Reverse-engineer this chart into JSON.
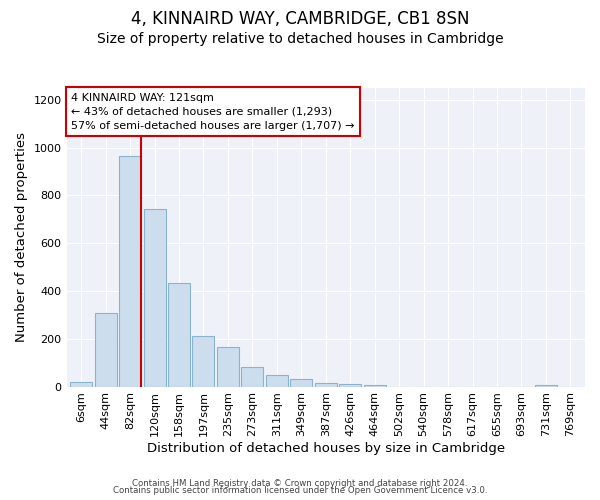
{
  "title": "4, KINNAIRD WAY, CAMBRIDGE, CB1 8SN",
  "subtitle": "Size of property relative to detached houses in Cambridge",
  "xlabel": "Distribution of detached houses by size in Cambridge",
  "ylabel": "Number of detached properties",
  "bar_labels": [
    "6sqm",
    "44sqm",
    "82sqm",
    "120sqm",
    "158sqm",
    "197sqm",
    "235sqm",
    "273sqm",
    "311sqm",
    "349sqm",
    "387sqm",
    "426sqm",
    "464sqm",
    "502sqm",
    "540sqm",
    "578sqm",
    "617sqm",
    "655sqm",
    "693sqm",
    "731sqm",
    "769sqm"
  ],
  "bar_values": [
    20,
    310,
    965,
    745,
    435,
    210,
    165,
    80,
    48,
    32,
    15,
    10,
    8,
    0,
    0,
    0,
    0,
    0,
    0,
    8,
    0
  ],
  "bar_color": "#ccdded",
  "bar_edge_color": "#8ab4cc",
  "vline_color": "#cc0000",
  "annotation_title": "4 KINNAIRD WAY: 121sqm",
  "annotation_line1": "← 43% of detached houses are smaller (1,293)",
  "annotation_line2": "57% of semi-detached houses are larger (1,707) →",
  "annotation_box_color": "#cc0000",
  "ylim": [
    0,
    1250
  ],
  "yticks": [
    0,
    200,
    400,
    600,
    800,
    1000,
    1200
  ],
  "footer1": "Contains HM Land Registry data © Crown copyright and database right 2024.",
  "footer2": "Contains public sector information licensed under the Open Government Licence v3.0.",
  "bg_color": "#ffffff",
  "plot_bg_color": "#eef2f8",
  "grid_color": "#ffffff",
  "title_fontsize": 12,
  "subtitle_fontsize": 10,
  "axis_label_fontsize": 9.5,
  "tick_fontsize": 8
}
